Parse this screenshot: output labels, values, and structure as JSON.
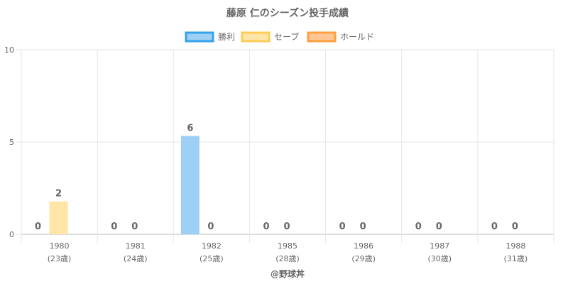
{
  "chart_data": {
    "type": "bar",
    "title": "藤原 仁のシーズン投手成績",
    "categories": [
      "1980",
      "1981",
      "1982",
      "1985",
      "1986",
      "1987",
      "1988"
    ],
    "category_sublabels": [
      "(23歳)",
      "(24歳)",
      "(25歳)",
      "(28歳)",
      "(29歳)",
      "(30歳)",
      "(31歳)"
    ],
    "series": [
      {
        "name": "勝利",
        "values": [
          0,
          0,
          6,
          0,
          0,
          0,
          0
        ],
        "fill": "#9ed0f5",
        "stroke": "#36a2eb"
      },
      {
        "name": "セーブ",
        "values": [
          2,
          0,
          0,
          0,
          0,
          0,
          0
        ],
        "fill": "#ffe6a8",
        "stroke": "#ffcd56"
      },
      {
        "name": "ホールド",
        "values": [
          0,
          0,
          0,
          0,
          0,
          0,
          0
        ],
        "fill": "#ffc594",
        "stroke": "#ff9f40"
      }
    ],
    "bar_heights": [
      [
        0,
        0,
        5.33,
        0,
        0,
        0,
        0
      ],
      [
        1.78,
        0,
        0,
        0,
        0,
        0,
        0
      ],
      [
        0,
        0,
        0,
        0,
        0,
        0,
        0
      ]
    ],
    "ylim": [
      0,
      10
    ],
    "yticks": [
      0,
      5,
      10
    ],
    "xlabel": "",
    "ylabel": "",
    "grid": true,
    "legend_position": "top"
  },
  "credit": "@野球丼"
}
